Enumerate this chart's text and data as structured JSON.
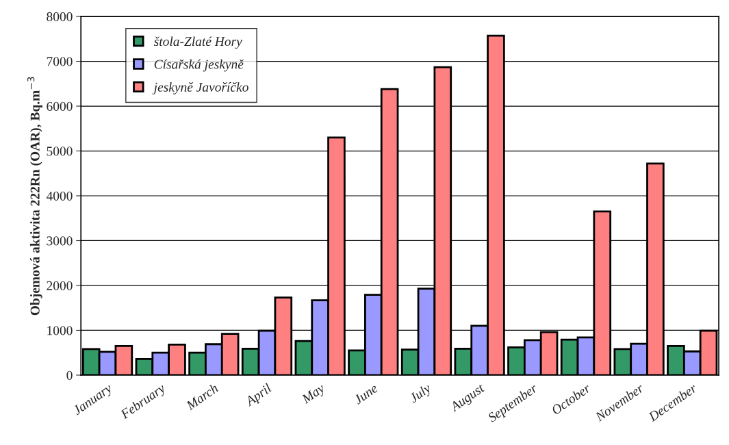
{
  "chart_data": {
    "type": "bar",
    "ylabel": "Objemová aktivita 222Rn (OAR), Bq.m$^{−3}$",
    "categories": [
      "January",
      "February",
      "March",
      "April",
      "May",
      "June",
      "July",
      "August",
      "September",
      "October",
      "November",
      "December"
    ],
    "series": [
      {
        "name": "štola-Zlaté Hory",
        "color": "#339966",
        "values": [
          580,
          360,
          500,
          590,
          760,
          550,
          570,
          590,
          620,
          790,
          580,
          650
        ]
      },
      {
        "name": "Císařská jeskyně",
        "color": "#9999ff",
        "values": [
          520,
          500,
          690,
          990,
          1670,
          1790,
          1930,
          1100,
          780,
          840,
          700,
          530
        ]
      },
      {
        "name": "jeskyně Javoříčko",
        "color": "#ff8080",
        "values": [
          650,
          680,
          920,
          1730,
          5300,
          6380,
          6870,
          7570,
          960,
          3650,
          4720,
          990
        ]
      }
    ],
    "ylim": [
      0,
      8000
    ],
    "yticks": [
      0,
      1000,
      2000,
      3000,
      4000,
      5000,
      6000,
      7000,
      8000
    ],
    "grid": "y",
    "legend": "top left"
  }
}
